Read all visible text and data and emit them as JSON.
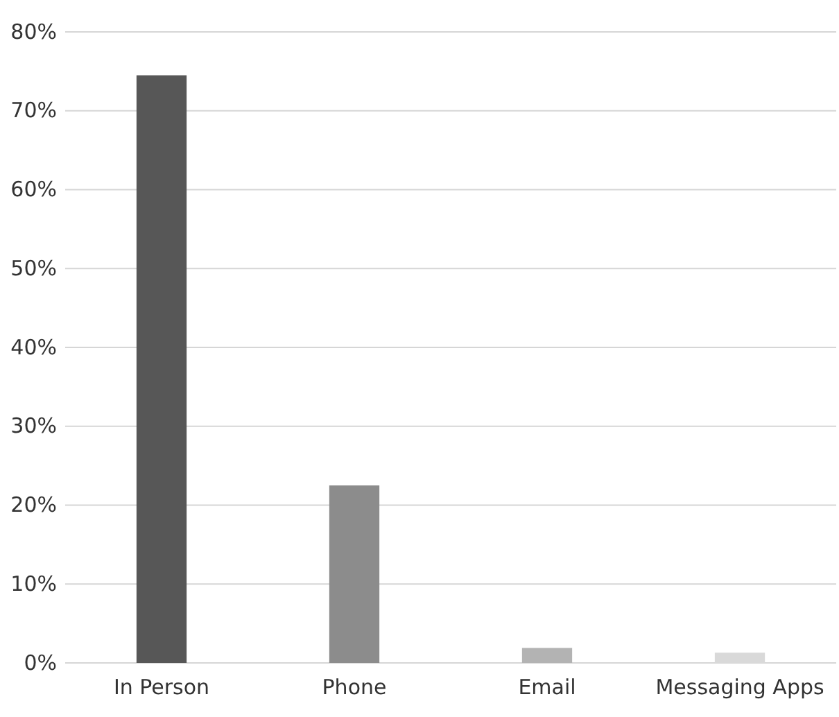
{
  "chart_data": {
    "type": "bar",
    "categories": [
      "In Person",
      "Phone",
      "Email",
      "Messaging Apps"
    ],
    "values": [
      74.5,
      22.5,
      1.9,
      1.3
    ],
    "colors": [
      "#575757",
      "#8c8c8c",
      "#b3b3b3",
      "#d9d9d9"
    ],
    "ylim": [
      0,
      80
    ],
    "yticks": [
      {
        "value": 0,
        "label": "0%"
      },
      {
        "value": 10,
        "label": "10%"
      },
      {
        "value": 20,
        "label": "20%"
      },
      {
        "value": 30,
        "label": "30%"
      },
      {
        "value": 40,
        "label": "40%"
      },
      {
        "value": 50,
        "label": "50%"
      },
      {
        "value": 60,
        "label": "60%"
      },
      {
        "value": 70,
        "label": "70%"
      },
      {
        "value": 80,
        "label": "80%"
      }
    ],
    "grid": "y"
  }
}
